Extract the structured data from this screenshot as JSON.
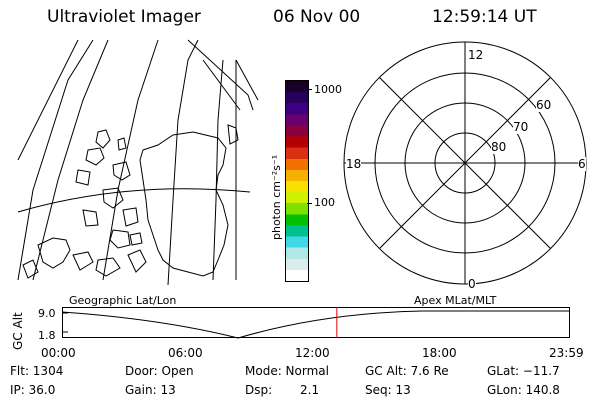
{
  "header": {
    "instrument": "Ultraviolet Imager",
    "date": "06 Nov 00",
    "time": "12:59:14 UT"
  },
  "map_panel": {
    "label": "Geographic Lat/Lon"
  },
  "colorbar": {
    "unit_label": "photon cm⁻²s⁻¹",
    "ticks": [
      "1000",
      "100"
    ],
    "colors": [
      "#1a0026",
      "#26005a",
      "#3c0080",
      "#6a0070",
      "#8c0040",
      "#b40000",
      "#d83010",
      "#f07000",
      "#f8b000",
      "#f8e000",
      "#d0f000",
      "#80e000",
      "#00c000",
      "#00c090",
      "#40d8e8",
      "#b0e8e8",
      "#dcecec",
      "#ffffff"
    ]
  },
  "polar_panel": {
    "label": "Apex MLat/MLT",
    "mlt_labels": {
      "top": "12",
      "left": "18",
      "right": "6",
      "bottom": "0"
    },
    "lat_labels": [
      "60",
      "70",
      "80"
    ]
  },
  "altitude_strip": {
    "axis_label": "GC Alt",
    "y_ticks": [
      "9.0",
      "1.8"
    ],
    "x_ticks": [
      "00:00",
      "06:00",
      "12:00",
      "18:00",
      "23:59"
    ],
    "marker_color": "#e00000",
    "marker_time_fraction": 0.541
  },
  "info": {
    "flt": "Flt: 1304",
    "ip": "IP: 36.0",
    "door": "Door: Open",
    "gain": "Gain: 13",
    "mode": "Mode: Normal",
    "dsp": "Dsp:",
    "dsp_value": "2.1",
    "gc_alt": "GC Alt: 7.6 Re",
    "seq": "Seq: 13",
    "glat": "GLat: −11.7",
    "glon": "GLon: 140.8"
  }
}
